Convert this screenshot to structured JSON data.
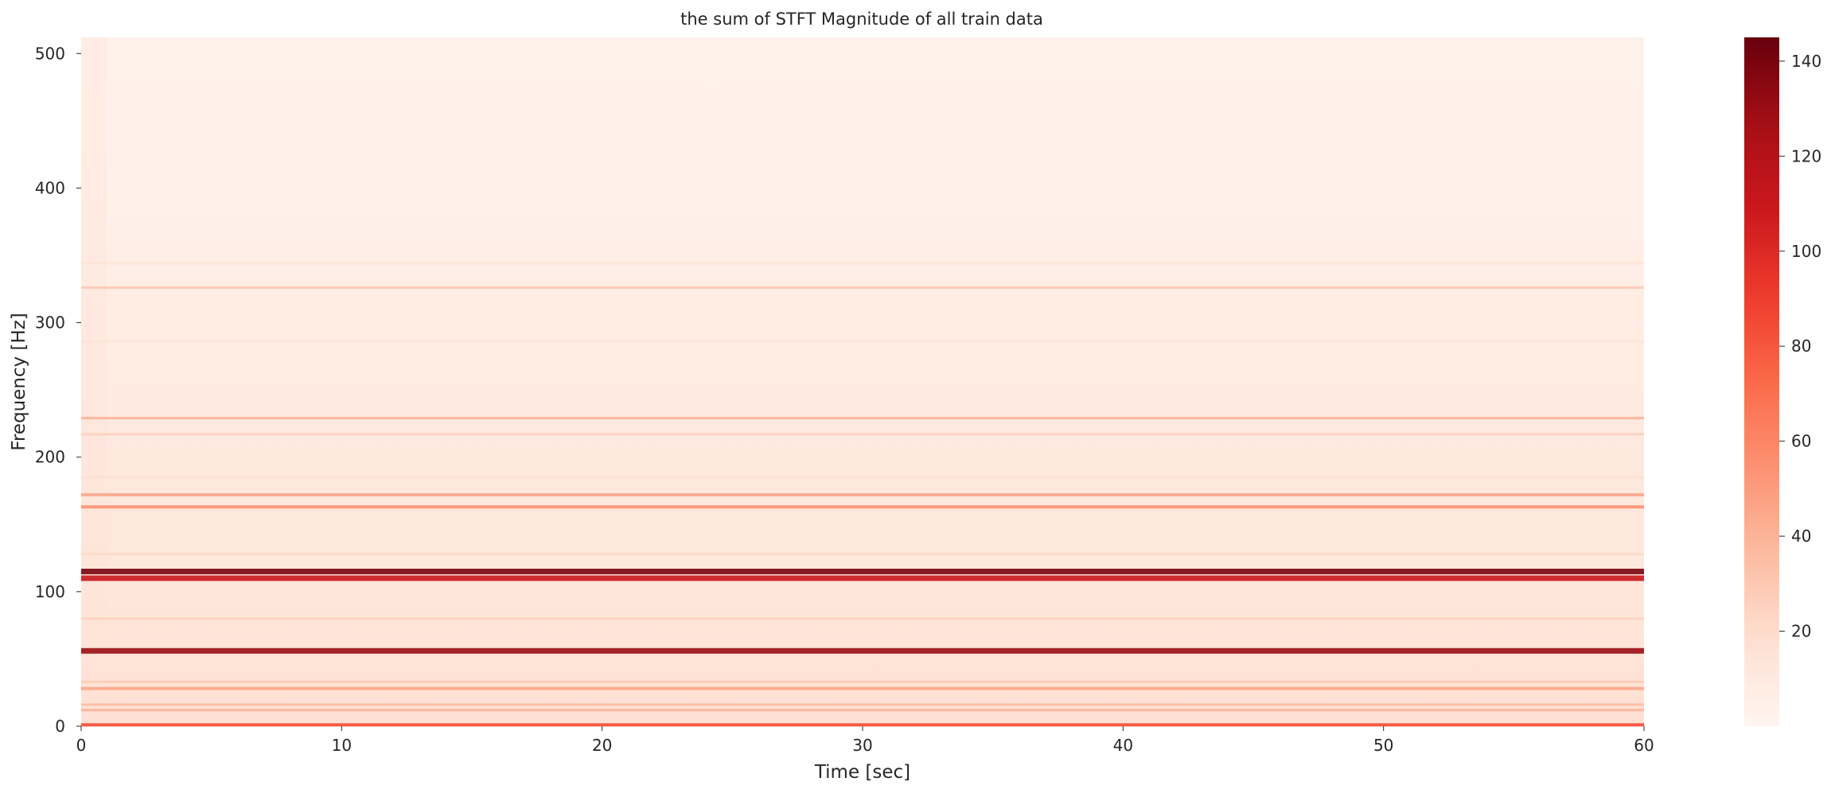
{
  "chart_data": {
    "type": "heatmap",
    "title": "the sum of STFT Magnitude of all train data",
    "xlabel": "Time [sec]",
    "ylabel": "Frequency [Hz]",
    "xlim": [
      0,
      60
    ],
    "ylim": [
      0,
      512
    ],
    "xticks": [
      "0",
      "10",
      "20",
      "30",
      "40",
      "50",
      "60"
    ],
    "yticks": [
      "0",
      "100",
      "200",
      "300",
      "400",
      "500"
    ],
    "colormap": "Reds",
    "grid": false,
    "colorbar": {
      "range": [
        0,
        145
      ],
      "ticks": [
        "20",
        "40",
        "60",
        "80",
        "100",
        "120",
        "140"
      ]
    },
    "harmonic_lines": [
      {
        "frequency": 1,
        "magnitude": 85
      },
      {
        "frequency": 12,
        "magnitude": 40
      },
      {
        "frequency": 16,
        "magnitude": 35
      },
      {
        "frequency": 28,
        "magnitude": 45
      },
      {
        "frequency": 33,
        "magnitude": 28
      },
      {
        "frequency": 56,
        "magnitude": 130
      },
      {
        "frequency": 80,
        "magnitude": 25
      },
      {
        "frequency": 110,
        "magnitude": 110
      },
      {
        "frequency": 115,
        "magnitude": 140
      },
      {
        "frequency": 128,
        "magnitude": 22
      },
      {
        "frequency": 163,
        "magnitude": 55
      },
      {
        "frequency": 172,
        "magnitude": 45
      },
      {
        "frequency": 185,
        "magnitude": 18
      },
      {
        "frequency": 217,
        "magnitude": 25
      },
      {
        "frequency": 229,
        "magnitude": 40
      },
      {
        "frequency": 286,
        "magnitude": 15
      },
      {
        "frequency": 326,
        "magnitude": 30
      },
      {
        "frequency": 344,
        "magnitude": 15
      }
    ],
    "background_profile": [
      {
        "frequency": 0,
        "magnitude": 18
      },
      {
        "frequency": 60,
        "magnitude": 15
      },
      {
        "frequency": 120,
        "magnitude": 12
      },
      {
        "frequency": 200,
        "magnitude": 10
      },
      {
        "frequency": 260,
        "magnitude": 9
      },
      {
        "frequency": 340,
        "magnitude": 6
      },
      {
        "frequency": 400,
        "magnitude": 4
      },
      {
        "frequency": 512,
        "magnitude": 3
      }
    ]
  }
}
